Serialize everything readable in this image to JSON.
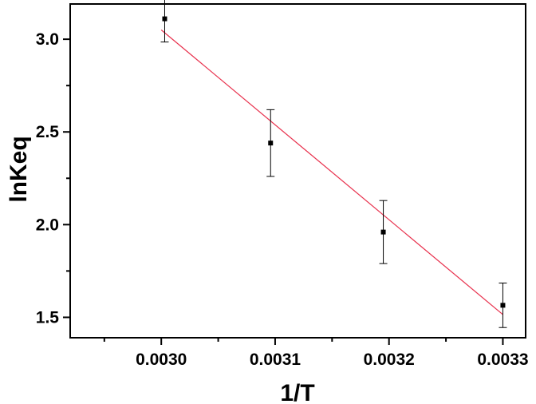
{
  "chart_data": {
    "type": "scatter",
    "title": "",
    "xlabel": "1/T",
    "ylabel": "lnKeq",
    "xlim": [
      0.00292,
      0.00332
    ],
    "ylim": [
      1.39,
      3.19
    ],
    "x_major_ticks": [
      0.003,
      0.0031,
      0.0032,
      0.0033
    ],
    "x_tick_labels": [
      "0.0030",
      "0.0031",
      "0.0032",
      "0.0033"
    ],
    "x_minor_ticks": [
      0.00295,
      0.00305,
      0.00315,
      0.00325
    ],
    "y_major_ticks": [
      1.5,
      2.0,
      2.5,
      3.0
    ],
    "y_tick_labels": [
      "1.5",
      "2.0",
      "2.5",
      "3.0"
    ],
    "y_minor_ticks": [
      1.75,
      2.25,
      2.75
    ],
    "grid": false,
    "legend": "none",
    "series": [
      {
        "type": "scatter",
        "color": "#000000",
        "marker": "square",
        "points": [
          {
            "x": 0.003003,
            "y": 3.11,
            "err": 0.125
          },
          {
            "x": 0.003096,
            "y": 2.44,
            "err": 0.18
          },
          {
            "x": 0.003195,
            "y": 1.96,
            "err": 0.17
          },
          {
            "x": 0.0033,
            "y": 1.565,
            "err": 0.12
          }
        ]
      },
      {
        "type": "line",
        "color": "#e8324e",
        "fit": true,
        "points": [
          {
            "x": 0.003,
            "y": 3.05
          },
          {
            "x": 0.0033,
            "y": 1.515
          }
        ]
      }
    ]
  }
}
